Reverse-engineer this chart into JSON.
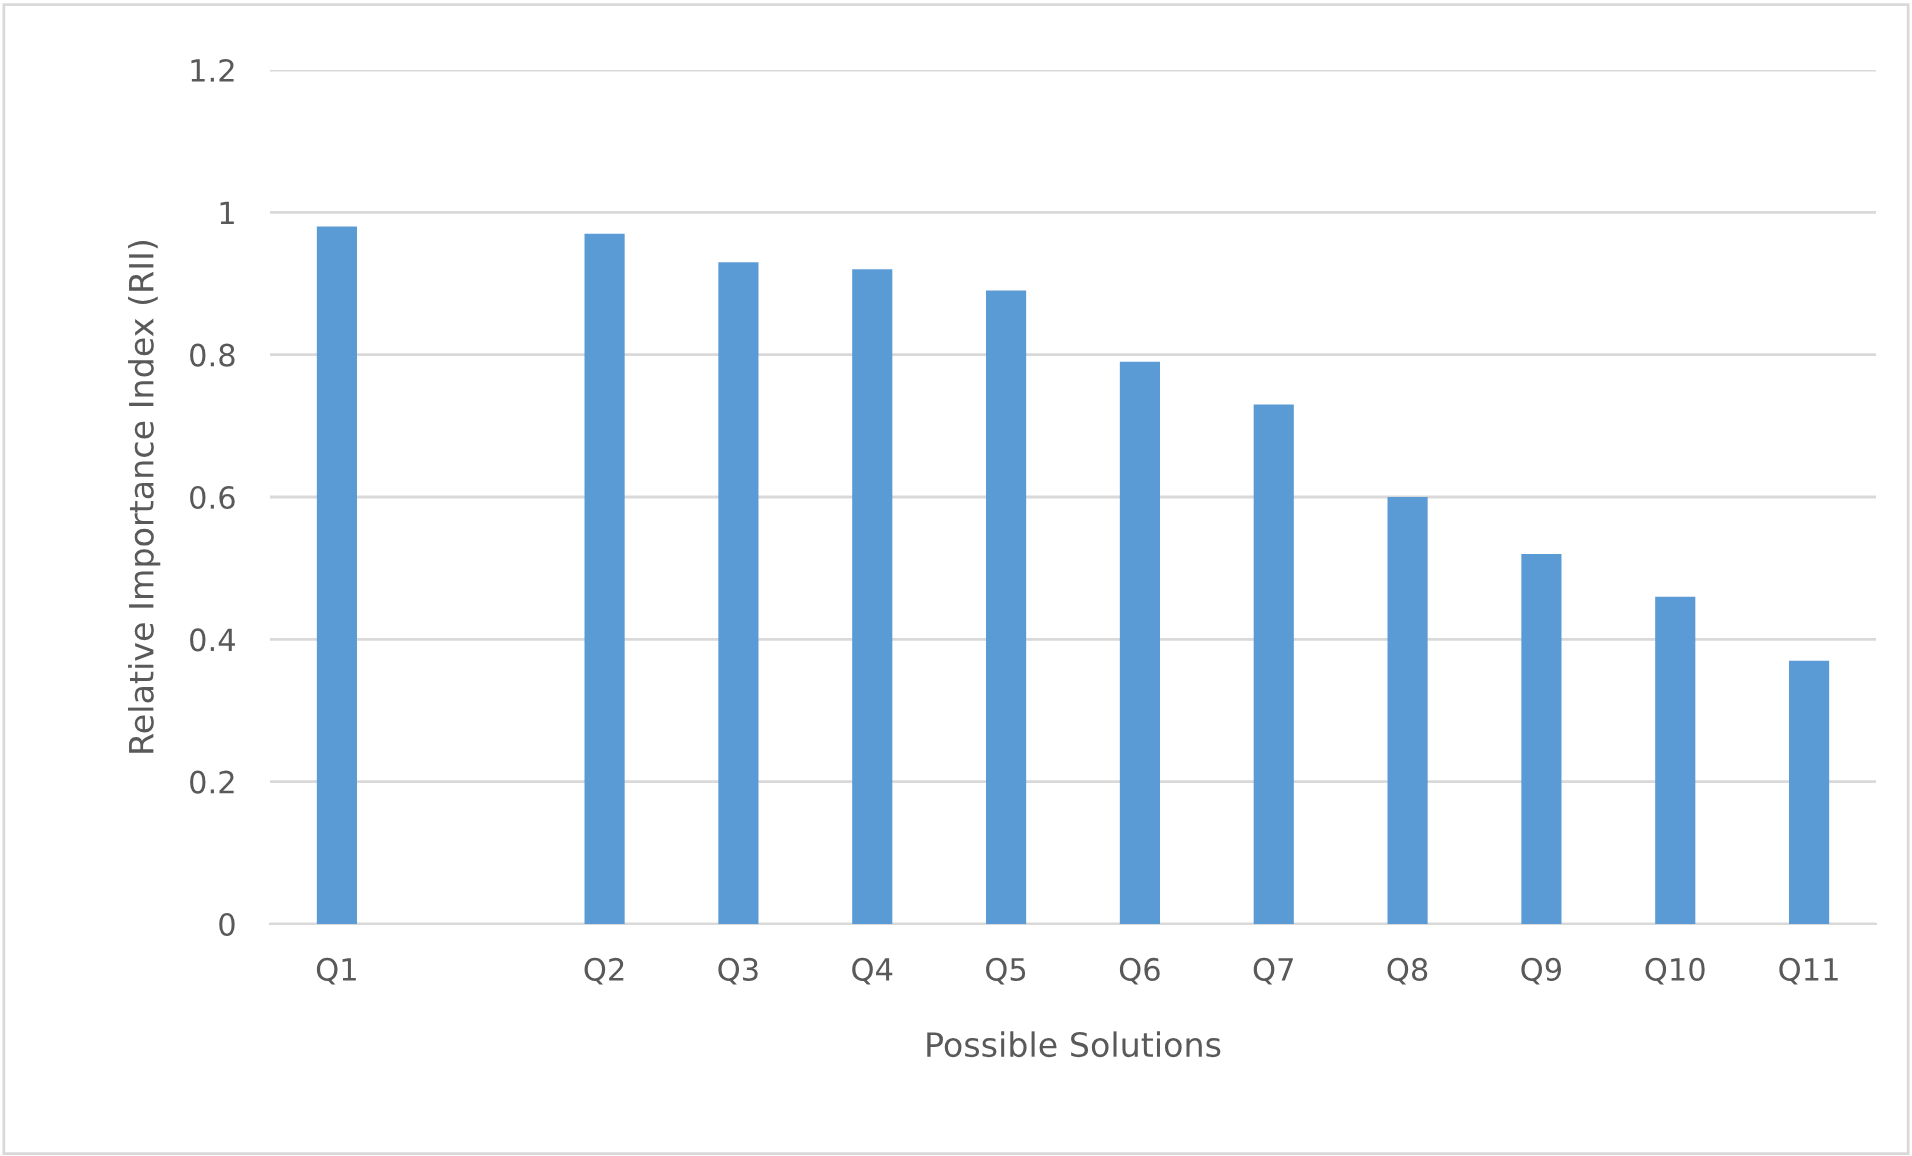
{
  "chart_data": {
    "type": "bar",
    "xlabel": "Possible Solutions",
    "ylabel": "Relative Importance Index (RII)",
    "categories": [
      "Q1",
      null,
      "Q2",
      "Q3",
      "Q4",
      "Q5",
      "Q6",
      "Q7",
      "Q8",
      "Q9",
      "Q10",
      "Q11"
    ],
    "values": [
      0.98,
      null,
      0.97,
      0.93,
      0.92,
      0.89,
      0.79,
      0.73,
      0.6,
      0.52,
      0.46,
      0.37
    ],
    "color": "#5b9bd5",
    "ylim": [
      0,
      1.2
    ],
    "yticks": [
      0,
      0.2,
      0.4,
      0.6,
      0.8,
      1,
      1.2
    ],
    "grid": "y"
  }
}
